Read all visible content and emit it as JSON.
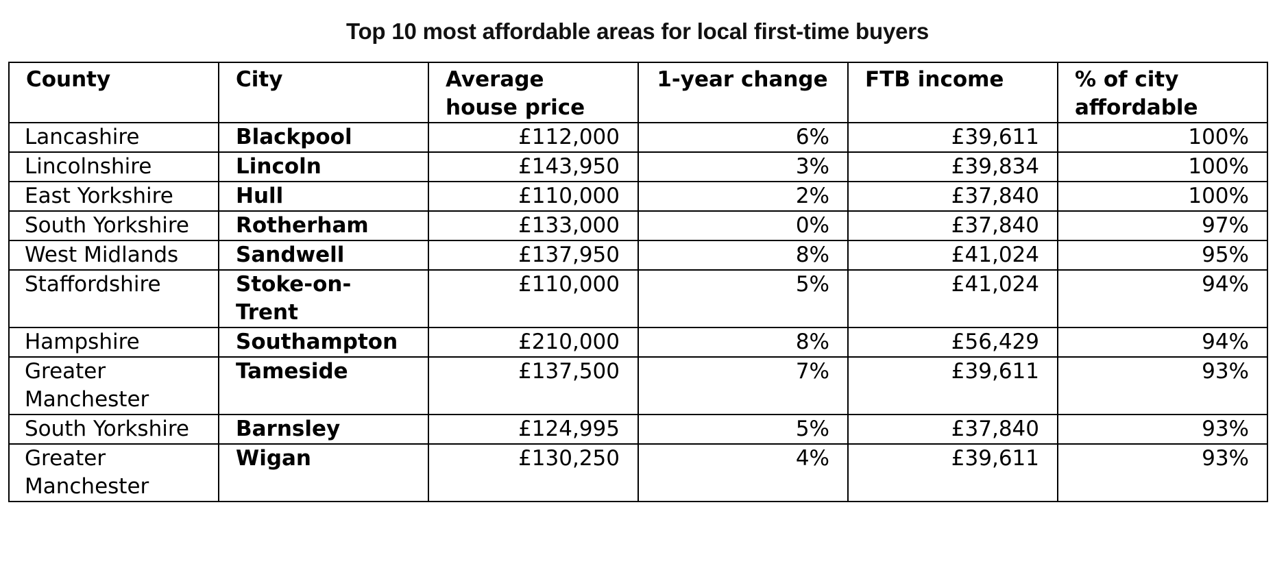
{
  "title": "Top 10 most affordable areas for local first-time buyers",
  "table": {
    "headers": [
      "County",
      "City",
      "Average house price",
      "1-year change",
      "FTB income",
      "% of city affordable"
    ],
    "rows": [
      [
        "Lancashire",
        "Blackpool",
        "£112,000",
        "6%",
        "£39,611",
        "100%"
      ],
      [
        "Lincolnshire",
        "Lincoln",
        "£143,950",
        "3%",
        "£39,834",
        "100%"
      ],
      [
        "East Yorkshire",
        "Hull",
        "£110,000",
        "2%",
        "£37,840",
        "100%"
      ],
      [
        "South Yorkshire",
        "Rotherham",
        "£133,000",
        "0%",
        "£37,840",
        "97%"
      ],
      [
        "West Midlands",
        "Sandwell",
        "£137,950",
        "8%",
        "£41,024",
        "95%"
      ],
      [
        "Staffordshire",
        "Stoke-on-Trent",
        "£110,000",
        "5%",
        "£41,024",
        "94%"
      ],
      [
        "Hampshire",
        "Southampton",
        "£210,000",
        "8%",
        "£56,429",
        "94%"
      ],
      [
        "Greater Manchester",
        "Tameside",
        "£137,500",
        "7%",
        "£39,611",
        "93%"
      ],
      [
        "South Yorkshire",
        "Barnsley",
        "£124,995",
        "5%",
        "£37,840",
        "93%"
      ],
      [
        "Greater Manchester",
        "Wigan",
        "£130,250",
        "4%",
        "£39,611",
        "93%"
      ]
    ]
  },
  "chart_data": {
    "type": "table",
    "title": "Top 10 most affordable areas for local first-time buyers",
    "columns": [
      "County",
      "City",
      "Average house price",
      "1-year change",
      "FTB income",
      "% of city affordable"
    ],
    "rows": [
      {
        "county": "Lancashire",
        "city": "Blackpool",
        "average_house_price": 112000,
        "one_year_change_pct": 6,
        "ftb_income": 39611,
        "pct_city_affordable": 100
      },
      {
        "county": "Lincolnshire",
        "city": "Lincoln",
        "average_house_price": 143950,
        "one_year_change_pct": 3,
        "ftb_income": 39834,
        "pct_city_affordable": 100
      },
      {
        "county": "East Yorkshire",
        "city": "Hull",
        "average_house_price": 110000,
        "one_year_change_pct": 2,
        "ftb_income": 37840,
        "pct_city_affordable": 100
      },
      {
        "county": "South Yorkshire",
        "city": "Rotherham",
        "average_house_price": 133000,
        "one_year_change_pct": 0,
        "ftb_income": 37840,
        "pct_city_affordable": 97
      },
      {
        "county": "West Midlands",
        "city": "Sandwell",
        "average_house_price": 137950,
        "one_year_change_pct": 8,
        "ftb_income": 41024,
        "pct_city_affordable": 95
      },
      {
        "county": "Staffordshire",
        "city": "Stoke-on-Trent",
        "average_house_price": 110000,
        "one_year_change_pct": 5,
        "ftb_income": 41024,
        "pct_city_affordable": 94
      },
      {
        "county": "Hampshire",
        "city": "Southampton",
        "average_house_price": 210000,
        "one_year_change_pct": 8,
        "ftb_income": 56429,
        "pct_city_affordable": 94
      },
      {
        "county": "Greater Manchester",
        "city": "Tameside",
        "average_house_price": 137500,
        "one_year_change_pct": 7,
        "ftb_income": 39611,
        "pct_city_affordable": 93
      },
      {
        "county": "South Yorkshire",
        "city": "Barnsley",
        "average_house_price": 124995,
        "one_year_change_pct": 5,
        "ftb_income": 37840,
        "pct_city_affordable": 93
      },
      {
        "county": "Greater Manchester",
        "city": "Wigan",
        "average_house_price": 130250,
        "one_year_change_pct": 4,
        "ftb_income": 39611,
        "pct_city_affordable": 93
      }
    ]
  }
}
